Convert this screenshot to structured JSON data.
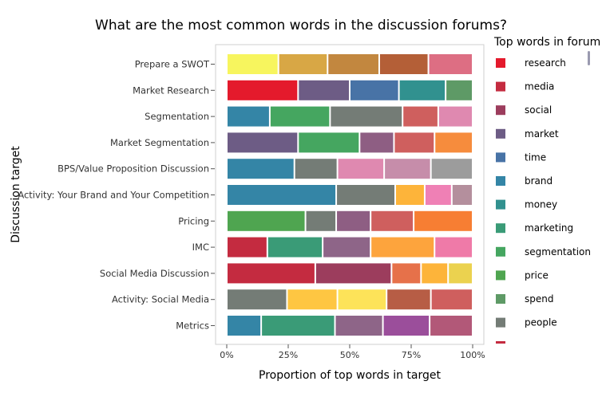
{
  "chart_data": {
    "type": "bar",
    "orientation": "horizontal",
    "stacked": true,
    "title": "What are the most common words in the discussion forums?",
    "xlabel": "Proportion of top words in target",
    "ylabel": "Discussion target",
    "xlim": [
      0,
      1
    ],
    "x_ticks": [
      "0%",
      "25%",
      "50%",
      "75%",
      "100%"
    ],
    "grid": false,
    "legend_title": "Top words in forum",
    "legend_position": "right",
    "legend_items": [
      {
        "name": "research",
        "color": "#e41a2c"
      },
      {
        "name": "media",
        "color": "#c42b40"
      },
      {
        "name": "social",
        "color": "#9c3d5d"
      },
      {
        "name": "market",
        "color": "#6d5c85"
      },
      {
        "name": "time",
        "color": "#4873a6"
      },
      {
        "name": "brand",
        "color": "#3485a6"
      },
      {
        "name": "money",
        "color": "#31918f"
      },
      {
        "name": "marketing",
        "color": "#3a9b77"
      },
      {
        "name": "segmentation",
        "color": "#45a660"
      },
      {
        "name": "price",
        "color": "#4fa550"
      },
      {
        "name": "spend",
        "color": "#5e9a66"
      },
      {
        "name": "people",
        "color": "#747c76"
      }
    ],
    "categories": [
      "Prepare a SWOT",
      "Market Research",
      "Segmentation",
      "Market Segmentation",
      "BPS/Value Proposition Discussion",
      "Activity: Your Brand and Your Competition",
      "Pricing",
      "IMC",
      "Social Media Discussion",
      "Activity: Social Media",
      "Metrics"
    ],
    "segments": [
      [
        {
          "value": 0.21,
          "color": "#f7f55e"
        },
        {
          "value": 0.2,
          "color": "#d8a745"
        },
        {
          "value": 0.21,
          "color": "#c2873f"
        },
        {
          "value": 0.2,
          "color": "#b45f37"
        },
        {
          "value": 0.18,
          "color": "#dd6e83"
        }
      ],
      [
        {
          "value": 0.29,
          "color": "#e41a2c"
        },
        {
          "value": 0.21,
          "color": "#6d5c85"
        },
        {
          "value": 0.2,
          "color": "#4873a6"
        },
        {
          "value": 0.19,
          "color": "#31918f"
        },
        {
          "value": 0.11,
          "color": "#5e9a66"
        }
      ],
      [
        {
          "value": 0.175,
          "color": "#3485a6"
        },
        {
          "value": 0.245,
          "color": "#45a660"
        },
        {
          "value": 0.295,
          "color": "#747c76"
        },
        {
          "value": 0.145,
          "color": "#cf5f5e"
        },
        {
          "value": 0.14,
          "color": "#df89b0"
        }
      ],
      [
        {
          "value": 0.29,
          "color": "#6d5c85"
        },
        {
          "value": 0.25,
          "color": "#45a660"
        },
        {
          "value": 0.14,
          "color": "#8e5e83"
        },
        {
          "value": 0.165,
          "color": "#cf5f5e"
        },
        {
          "value": 0.155,
          "color": "#f68c3d"
        }
      ],
      [
        {
          "value": 0.275,
          "color": "#3485a6"
        },
        {
          "value": 0.175,
          "color": "#747c76"
        },
        {
          "value": 0.19,
          "color": "#df89b0"
        },
        {
          "value": 0.19,
          "color": "#c68daa"
        },
        {
          "value": 0.17,
          "color": "#9c9c9c"
        }
      ],
      [
        {
          "value": 0.445,
          "color": "#3485a6"
        },
        {
          "value": 0.24,
          "color": "#747c76"
        },
        {
          "value": 0.12,
          "color": "#fdb43a"
        },
        {
          "value": 0.11,
          "color": "#ef80b5"
        },
        {
          "value": 0.085,
          "color": "#b48f9d"
        }
      ],
      [
        {
          "value": 0.32,
          "color": "#4fa550"
        },
        {
          "value": 0.125,
          "color": "#747c76"
        },
        {
          "value": 0.14,
          "color": "#8e5e83"
        },
        {
          "value": 0.175,
          "color": "#cf5f5e"
        },
        {
          "value": 0.24,
          "color": "#f77e33"
        }
      ],
      [
        {
          "value": 0.165,
          "color": "#c42b40"
        },
        {
          "value": 0.225,
          "color": "#3a9b77"
        },
        {
          "value": 0.195,
          "color": "#8e6588"
        },
        {
          "value": 0.26,
          "color": "#fda43d"
        },
        {
          "value": 0.155,
          "color": "#ef7aa8"
        }
      ],
      [
        {
          "value": 0.36,
          "color": "#c42b40"
        },
        {
          "value": 0.31,
          "color": "#9c3d5d"
        },
        {
          "value": 0.12,
          "color": "#e6714a"
        },
        {
          "value": 0.11,
          "color": "#fdb43a"
        },
        {
          "value": 0.1,
          "color": "#ebd24f"
        }
      ],
      [
        {
          "value": 0.245,
          "color": "#747c76"
        },
        {
          "value": 0.205,
          "color": "#fec642"
        },
        {
          "value": 0.2,
          "color": "#fde359"
        },
        {
          "value": 0.18,
          "color": "#b75d45"
        },
        {
          "value": 0.17,
          "color": "#cf5f5e"
        }
      ],
      [
        {
          "value": 0.14,
          "color": "#3485a6"
        },
        {
          "value": 0.3,
          "color": "#3a9b77"
        },
        {
          "value": 0.195,
          "color": "#8e6588"
        },
        {
          "value": 0.19,
          "color": "#9b4e9b"
        },
        {
          "value": 0.175,
          "color": "#b25878"
        }
      ]
    ]
  }
}
